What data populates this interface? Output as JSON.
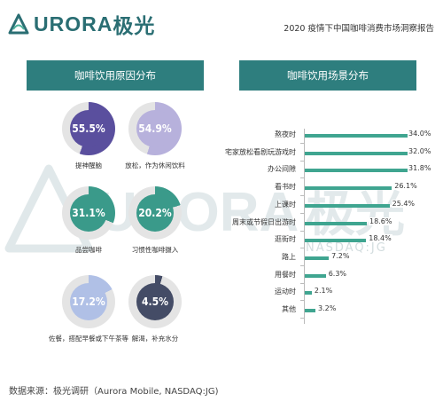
{
  "header": {
    "brand": "URORA",
    "brand_cn": "极光",
    "report_title": "2020 疫情下中国咖啡消费市场洞察报告"
  },
  "left_panel": {
    "title": "咖啡饮用原因分布"
  },
  "right_panel": {
    "title": "咖啡饮用场景分布"
  },
  "watermark": {
    "brand": "URORA",
    "brand_cn": "极光",
    "sub": "NASDAQ:JG"
  },
  "footer": {
    "source": "数据来源：极光调研（Aurora Mobile, NASDAQ:JG)"
  },
  "colors": {
    "teal_dark": "#2e7e7e",
    "bar_green": "#3fa590",
    "donut_purple": "#5a4f9e",
    "donut_teal": "#3a9a8a",
    "donut_lavender": "#b7b1dc",
    "donut_periwinkle": "#b0c0e6",
    "donut_slate": "#444c66"
  },
  "chart_data": [
    {
      "type": "pie",
      "title": "咖啡饮用原因分布",
      "categories": [
        "提神醒脑",
        "放松，作为休闲饮料",
        "品尝咖啡",
        "习惯性咖啡摄入",
        "佐餐，搭配早餐或下午茶等",
        "解渴，补充水分"
      ],
      "values": [
        55.5,
        54.9,
        31.1,
        20.2,
        17.2,
        4.5
      ],
      "value_labels": [
        "55.5%",
        "54.9%",
        "31.1%",
        "20.2%",
        "17.2%",
        "4.5%"
      ]
    },
    {
      "type": "bar",
      "orientation": "horizontal",
      "title": "咖啡饮用场景分布",
      "categories": [
        "熬夜时",
        "宅家放松看剧玩游戏时",
        "办公间隙",
        "看书时",
        "上课时",
        "周末或节假日出游时",
        "逛街时",
        "路上",
        "用餐时",
        "运动时",
        "其他"
      ],
      "values": [
        34.0,
        32.0,
        31.8,
        26.1,
        25.4,
        18.6,
        18.4,
        7.2,
        6.3,
        2.1,
        3.2
      ],
      "value_labels": [
        "34.0%",
        "32.0%",
        "31.8%",
        "26.1%",
        "25.4%",
        "18.6%",
        "18.4%",
        "7.2%",
        "6.3%",
        "2.1%",
        "3.2%"
      ]
    }
  ]
}
